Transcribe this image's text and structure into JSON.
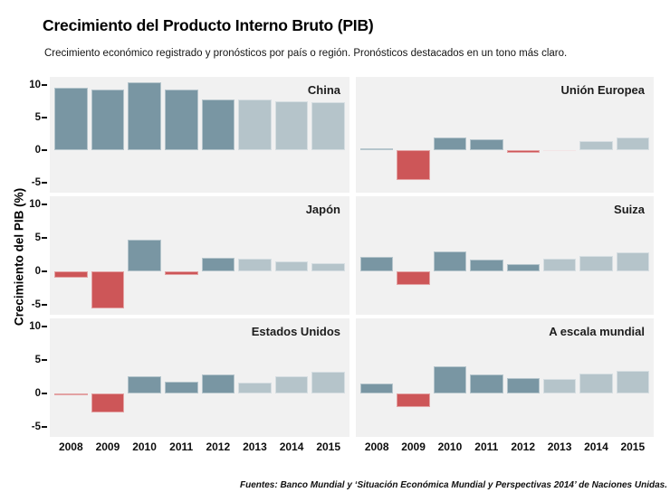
{
  "header": {
    "title": "Crecimiento del Producto Interno Bruto (PIB)",
    "subtitle": "Crecimiento económico registrado y pronósticos por país o región. Pronósticos destacados en un tono más claro."
  },
  "footer": {
    "text": "Fuentes: Banco Mundial y ‘Situación Económica Mundial y Perspectivas 2014’ de Naciones Unidas."
  },
  "colors": {
    "positive_recorded": "#7996a3",
    "positive_forecast": "#b5c4ca",
    "negative_recorded": "#cd5658",
    "negative_forecast": "#e8d0d2",
    "panel_bg": "#f1f1f1",
    "text": "#111111"
  },
  "chart_data": {
    "type": "bar",
    "title": "Crecimiento del Producto Interno Bruto (PIB)",
    "subtitle": "Crecimiento económico registrado y pronósticos por país o región. Pronósticos destacados en un tono más claro.",
    "ylabel": "Crecimiento del PIB (%)",
    "xlabel": "",
    "categories": [
      "2008",
      "2009",
      "2010",
      "2011",
      "2012",
      "2013",
      "2014",
      "2015"
    ],
    "yticks": [
      10,
      5,
      0,
      -5
    ],
    "ylim": [
      -6.5,
      11.2
    ],
    "grid": false,
    "legend": "none",
    "forecast_start_index": 5,
    "layout_hint": "2 columns x 3 rows of small multiples; forecasts shown in lighter tone",
    "panels": [
      {
        "title": "China",
        "values": [
          9.6,
          9.2,
          10.4,
          9.3,
          7.8,
          7.7,
          7.5,
          7.3
        ]
      },
      {
        "title": "Unión Europea",
        "values": [
          0.3,
          -4.5,
          2.0,
          1.6,
          -0.4,
          -0.1,
          1.4,
          1.9
        ]
      },
      {
        "title": "Japón",
        "values": [
          -1.0,
          -5.5,
          4.7,
          -0.6,
          2.0,
          1.9,
          1.5,
          1.2
        ]
      },
      {
        "title": "Suiza",
        "values": [
          2.1,
          -2.0,
          3.0,
          1.8,
          1.0,
          1.9,
          2.3,
          2.8
        ]
      },
      {
        "title": "Estados Unidos",
        "values": [
          -0.3,
          -2.8,
          2.5,
          1.8,
          2.8,
          1.6,
          2.5,
          3.2
        ]
      },
      {
        "title": "A escala mundial",
        "values": [
          1.5,
          -2.1,
          4.0,
          2.8,
          2.3,
          2.1,
          3.0,
          3.3
        ]
      }
    ]
  }
}
